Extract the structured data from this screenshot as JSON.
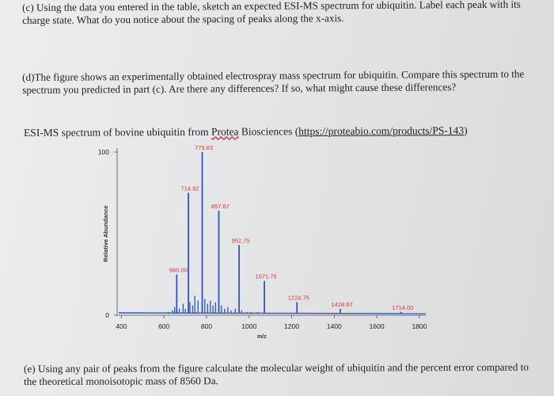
{
  "question_c": {
    "text": "(c) Using the data you entered in the table, sketch an expected ESI-MS spectrum for ubiquitin. Label each peak with its charge state. What do you notice about the spacing of peaks along the x-axis."
  },
  "question_d": {
    "text": "(d)The figure shows an experimentally obtained electrospray mass spectrum for ubiquitin. Compare this spectrum to the spectrum you predicted in part (c). Are there any differences? If so, what might cause these differences?"
  },
  "source_line": {
    "prefix": "ESI-MS spectrum of bovine ubiquitin from ",
    "company": "Protea",
    "middle": " Biosciences (",
    "url": "https://proteabio.com/products/PS-143",
    "suffix": ")"
  },
  "question_e": {
    "text": "(e) Using any pair of peaks from the figure calculate the molecular weight of ubiquitin and the percent error compared to the theoretical monoisotopic mass of 8560 Da."
  },
  "colors": {
    "spectrum": "#2a56c6",
    "peak_label": "#d23a2a",
    "axis": "#4a4f57"
  },
  "chart_data": {
    "type": "bar",
    "title": "",
    "xlabel": "m/z",
    "ylabel": "Relative Abundance",
    "xlim": [
      380,
      1830
    ],
    "ylim": [
      0,
      100
    ],
    "xticks": [
      400,
      600,
      800,
      1000,
      1200,
      1400,
      1600,
      1800
    ],
    "yticks": [
      0,
      100
    ],
    "grid": false,
    "labeled_peaks": [
      {
        "x": 660.0,
        "label": "660.00",
        "y": 25
      },
      {
        "x": 714.92,
        "label": "714.92",
        "y": 75
      },
      {
        "x": 779.83,
        "label": "779.83",
        "y": 100
      },
      {
        "x": 857.67,
        "label": "857.67",
        "y": 64
      },
      {
        "x": 952.75,
        "label": "952.75",
        "y": 43
      },
      {
        "x": 1071.75,
        "label": "1071.75",
        "y": 21
      },
      {
        "x": 1224.75,
        "label": "1224.75",
        "y": 8
      },
      {
        "x": 1428.67,
        "label": "1428.67",
        "y": 4
      },
      {
        "x": 1714.0,
        "label": "1714.00",
        "y": 2
      }
    ],
    "minor_peaks": [
      {
        "x": 620,
        "y": 2
      },
      {
        "x": 640,
        "y": 3
      },
      {
        "x": 650,
        "y": 5
      },
      {
        "x": 672,
        "y": 4
      },
      {
        "x": 690,
        "y": 7
      },
      {
        "x": 700,
        "y": 4
      },
      {
        "x": 722,
        "y": 8
      },
      {
        "x": 735,
        "y": 6
      },
      {
        "x": 745,
        "y": 12
      },
      {
        "x": 760,
        "y": 9
      },
      {
        "x": 792,
        "y": 10
      },
      {
        "x": 805,
        "y": 7
      },
      {
        "x": 818,
        "y": 9
      },
      {
        "x": 830,
        "y": 6
      },
      {
        "x": 842,
        "y": 8
      },
      {
        "x": 870,
        "y": 6
      },
      {
        "x": 885,
        "y": 4
      },
      {
        "x": 900,
        "y": 5
      },
      {
        "x": 915,
        "y": 3
      },
      {
        "x": 935,
        "y": 4
      },
      {
        "x": 965,
        "y": 3
      },
      {
        "x": 990,
        "y": 2
      },
      {
        "x": 1010,
        "y": 2
      },
      {
        "x": 1040,
        "y": 2
      },
      {
        "x": 1090,
        "y": 1
      },
      {
        "x": 1120,
        "y": 1
      },
      {
        "x": 1500,
        "y": 1
      },
      {
        "x": 1650,
        "y": 1
      }
    ]
  }
}
